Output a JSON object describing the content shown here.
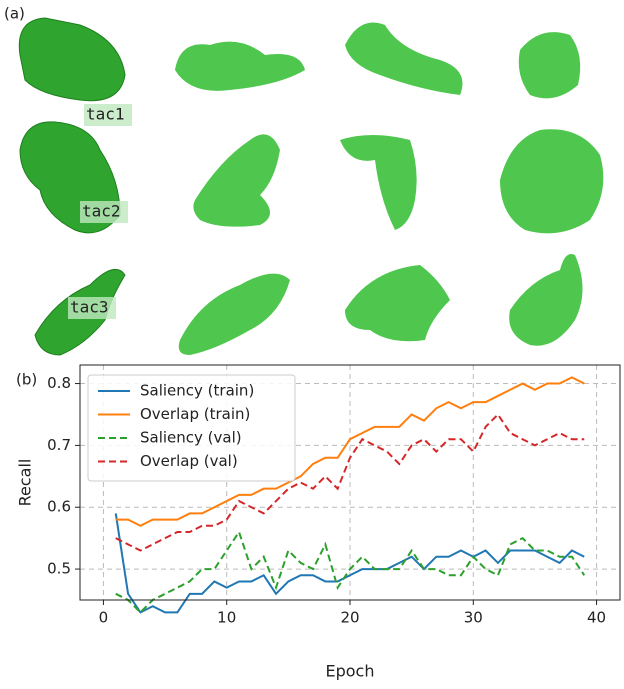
{
  "panels": {
    "a": "(a)",
    "b": "(b)"
  },
  "objects": [
    "tac1",
    "tac2",
    "tac3"
  ],
  "chart_data": {
    "type": "line",
    "xlabel": "Epoch",
    "ylabel": "Recall",
    "x": [
      1,
      2,
      3,
      4,
      5,
      6,
      7,
      8,
      9,
      10,
      11,
      12,
      13,
      14,
      15,
      16,
      17,
      18,
      19,
      20,
      21,
      22,
      23,
      24,
      25,
      26,
      27,
      28,
      29,
      30,
      31,
      32,
      33,
      34,
      35,
      36,
      37,
      38,
      39
    ],
    "series": [
      {
        "name": "Saliency (train)",
        "color": "#1f77b4",
        "dash": "solid",
        "values": [
          0.59,
          0.46,
          0.43,
          0.44,
          0.43,
          0.43,
          0.46,
          0.46,
          0.48,
          0.47,
          0.48,
          0.48,
          0.49,
          0.46,
          0.48,
          0.49,
          0.49,
          0.48,
          0.48,
          0.49,
          0.5,
          0.5,
          0.5,
          0.51,
          0.52,
          0.5,
          0.52,
          0.52,
          0.53,
          0.52,
          0.53,
          0.51,
          0.53,
          0.53,
          0.53,
          0.52,
          0.51,
          0.53,
          0.52
        ]
      },
      {
        "name": "Overlap (train)",
        "color": "#ff7f0e",
        "dash": "solid",
        "values": [
          0.58,
          0.58,
          0.57,
          0.58,
          0.58,
          0.58,
          0.59,
          0.59,
          0.6,
          0.61,
          0.62,
          0.62,
          0.63,
          0.63,
          0.64,
          0.65,
          0.67,
          0.68,
          0.68,
          0.71,
          0.72,
          0.73,
          0.73,
          0.73,
          0.75,
          0.74,
          0.76,
          0.77,
          0.76,
          0.77,
          0.77,
          0.78,
          0.79,
          0.8,
          0.79,
          0.8,
          0.8,
          0.81,
          0.8
        ]
      },
      {
        "name": "Saliency (val)",
        "color": "#2ca02c",
        "dash": "dashed",
        "values": [
          0.46,
          0.45,
          0.43,
          0.45,
          0.46,
          0.47,
          0.48,
          0.5,
          0.5,
          0.53,
          0.56,
          0.5,
          0.52,
          0.47,
          0.53,
          0.51,
          0.5,
          0.54,
          0.47,
          0.5,
          0.52,
          0.5,
          0.5,
          0.5,
          0.53,
          0.5,
          0.5,
          0.49,
          0.49,
          0.52,
          0.5,
          0.49,
          0.54,
          0.55,
          0.53,
          0.53,
          0.52,
          0.52,
          0.49
        ]
      },
      {
        "name": "Overlap (val)",
        "color": "#d62728",
        "dash": "dashed",
        "values": [
          0.55,
          0.54,
          0.53,
          0.54,
          0.55,
          0.56,
          0.56,
          0.57,
          0.57,
          0.58,
          0.61,
          0.6,
          0.59,
          0.61,
          0.63,
          0.64,
          0.63,
          0.65,
          0.63,
          0.68,
          0.71,
          0.7,
          0.69,
          0.67,
          0.7,
          0.71,
          0.69,
          0.71,
          0.71,
          0.69,
          0.73,
          0.75,
          0.72,
          0.71,
          0.7,
          0.71,
          0.72,
          0.71,
          0.71
        ]
      }
    ],
    "xlim": [
      -1.9,
      41.9
    ],
    "ylim": [
      0.45,
      0.83
    ],
    "xticks": [
      0,
      10,
      20,
      30,
      40
    ],
    "yticks": [
      0.5,
      0.6,
      0.7,
      0.8
    ],
    "grid": true,
    "legend": "upper-left"
  }
}
